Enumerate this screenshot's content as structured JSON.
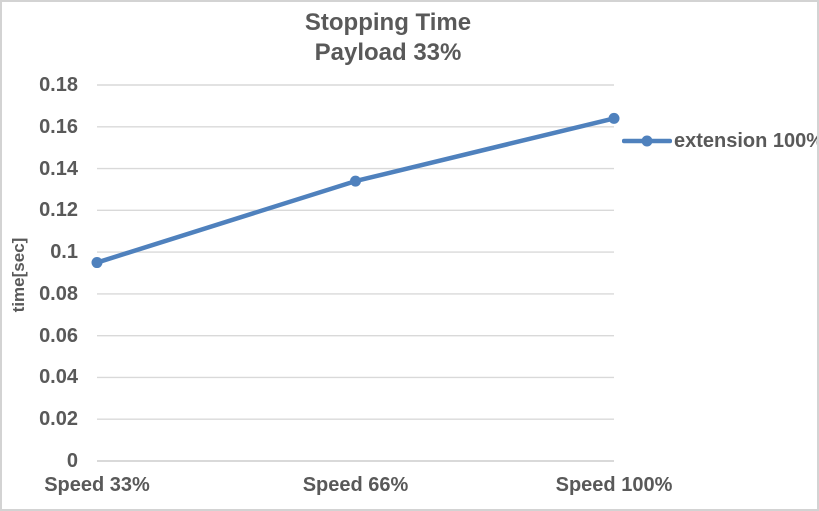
{
  "chart_data": {
    "type": "line",
    "title": "Stopping Time",
    "subtitle": "Payload 33%",
    "categories": [
      "Speed 33%",
      "Speed 66%",
      "Speed 100%"
    ],
    "series": [
      {
        "name": "extension 100%",
        "values": [
          0.095,
          0.134,
          0.164
        ]
      }
    ],
    "xlabel": "",
    "ylabel": "time[sec]",
    "ylim": [
      0,
      0.18
    ],
    "ytick_step": 0.02,
    "ytick_labels": [
      "0",
      "0.02",
      "0.04",
      "0.06",
      "0.08",
      "0.1",
      "0.12",
      "0.14",
      "0.16",
      "0.18"
    ],
    "grid": true,
    "legend_position": "right",
    "legend_entries": [
      "extension 100%"
    ],
    "colors": {
      "series": "#4F81BD",
      "text": "#595959",
      "gridline": "#D9D9D9",
      "axis_line": "#D9D9D9",
      "border": "#D3D3D3",
      "background": "#FFFFFF"
    }
  }
}
